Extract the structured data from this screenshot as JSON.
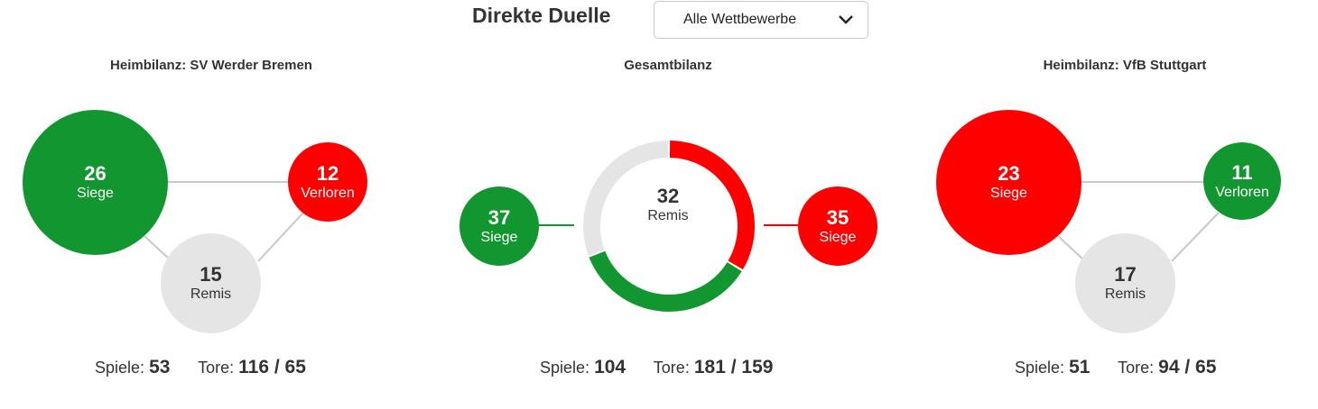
{
  "header": {
    "title": "Direkte Duelle",
    "competition_select": {
      "selected": "Alle Wettbewerbe",
      "icon": "chevron-down-icon"
    }
  },
  "colors": {
    "win": "#12962f",
    "loss": "#ff0000",
    "draw": "#e5e5e5",
    "text": "#333333"
  },
  "home_bremen": {
    "title": "Heimbilanz: SV Werder Bremen",
    "wins": {
      "value": "26",
      "label": "Siege"
    },
    "losses": {
      "value": "12",
      "label": "Verloren"
    },
    "draws": {
      "value": "15",
      "label": "Remis"
    },
    "games_label": "Spiele:",
    "games": "53",
    "goals_label": "Tore:",
    "goals": "116 / 65"
  },
  "overall": {
    "title": "Gesamtbilanz",
    "bremen_wins": {
      "value": "37",
      "label": "Siege"
    },
    "stuttgart_wins": {
      "value": "35",
      "label": "Siege"
    },
    "draws": {
      "value": "32",
      "label": "Remis"
    },
    "games_label": "Spiele:",
    "games": "104",
    "goals_label": "Tore:",
    "goals": "181 / 159"
  },
  "home_stuttgart": {
    "title": "Heimbilanz: VfB Stuttgart",
    "wins": {
      "value": "23",
      "label": "Siege"
    },
    "losses": {
      "value": "11",
      "label": "Verloren"
    },
    "draws": {
      "value": "17",
      "label": "Remis"
    },
    "games_label": "Spiele:",
    "games": "51",
    "goals_label": "Tore:",
    "goals": "94 / 65"
  }
}
